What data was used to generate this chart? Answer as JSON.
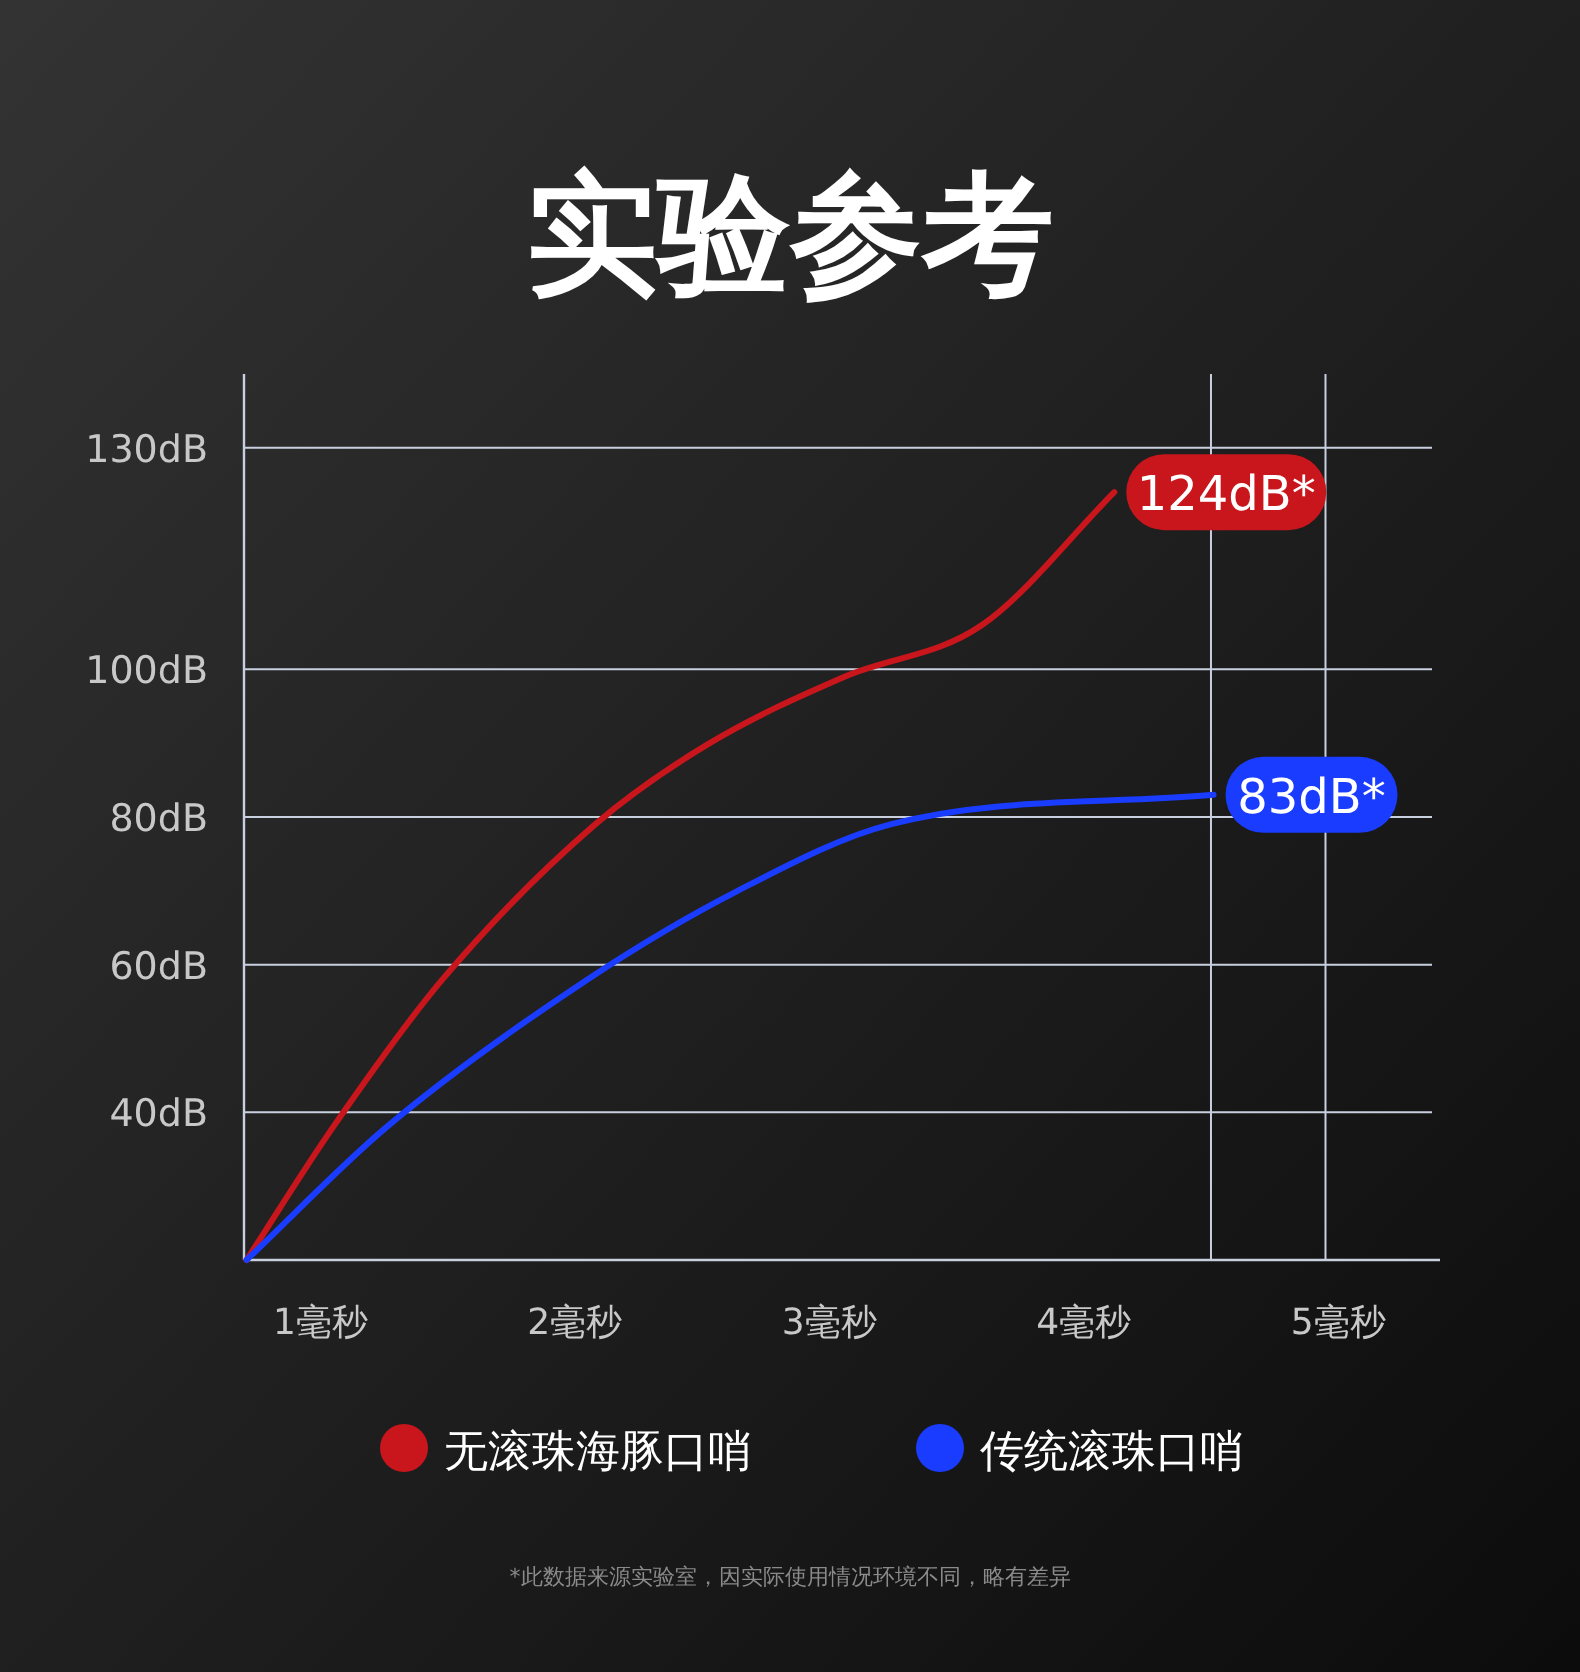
{
  "chart_data": {
    "type": "line",
    "title": "实验参考",
    "xlim": [
      0.7,
      5.4
    ],
    "xticks": [
      {
        "value": 1,
        "label": "1毫秒"
      },
      {
        "value": 2,
        "label": "2毫秒"
      },
      {
        "value": 3,
        "label": "3毫秒"
      },
      {
        "value": 4,
        "label": "4毫秒"
      },
      {
        "value": 5,
        "label": "5毫秒"
      }
    ],
    "ylim": [
      20,
      140
    ],
    "yticks": [
      {
        "value": 40,
        "label": "40dB"
      },
      {
        "value": 60,
        "label": "60dB"
      },
      {
        "value": 80,
        "label": "80dB"
      },
      {
        "value": 100,
        "label": "100dB"
      },
      {
        "value": 130,
        "label": "130dB"
      }
    ],
    "grid": "y",
    "legend": "bottom",
    "marker": "none",
    "line_style": "solid",
    "ref_lines": [
      {
        "axis": "x",
        "value": 4.5,
        "color": "#c8d0e0"
      },
      {
        "axis": "x",
        "value": 4.95,
        "color": "#c8d0e0"
      }
    ],
    "series": [
      {
        "name": "无滚珠海豚口哨",
        "color": "#c8161c",
        "x": [
          0.71,
          1.05,
          1.48,
          2.08,
          2.53,
          3.06,
          3.6,
          4.12
        ],
        "values": [
          20,
          38,
          58,
          79,
          90,
          99,
          106,
          124
        ],
        "value_labels": [
          null,
          null,
          null,
          null,
          null,
          null,
          null,
          "124dB*"
        ]
      },
      {
        "name": "传统滚珠口哨",
        "color": "#1a3cff",
        "x": [
          0.71,
          1.26,
          2.05,
          2.64,
          3.24,
          4.51
        ],
        "values": [
          20,
          38,
          58,
          70,
          79,
          83
        ],
        "value_labels": [
          null,
          null,
          null,
          null,
          null,
          "83dB*"
        ]
      }
    ],
    "annotations": [
      "*此数据来源实验室，因实际使用情况环境不同，略有差异"
    ]
  }
}
